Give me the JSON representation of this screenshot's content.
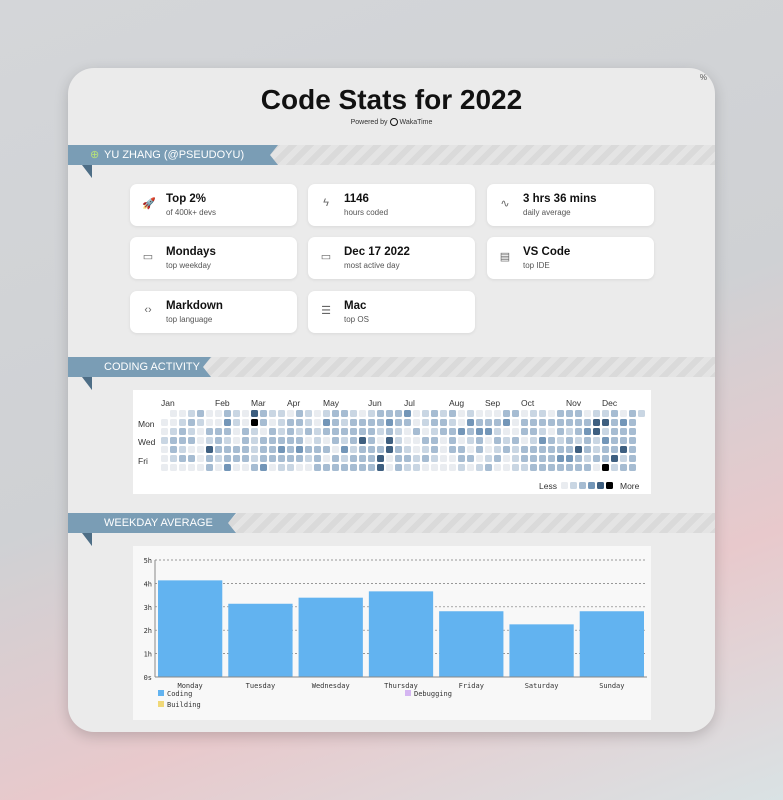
{
  "title": "Code Stats for 2022",
  "powered_by": "Powered by",
  "brand": "WakaTime",
  "corner_label": "%",
  "user_section": {
    "label": "YU ZHANG (@PSEUDOYU)"
  },
  "stats": [
    {
      "icon": "rocket-icon",
      "glyph": "🚀",
      "value": "Top 2%",
      "label": "of 400k+ devs"
    },
    {
      "icon": "lightning-icon",
      "glyph": "ϟ",
      "value": "1146",
      "label": "hours coded"
    },
    {
      "icon": "activity-icon",
      "glyph": "∿",
      "value": "3 hrs 36 mins",
      "label": "daily average"
    },
    {
      "icon": "calendar-icon",
      "glyph": "▭",
      "value": "Mondays",
      "label": "top weekday"
    },
    {
      "icon": "calendar-icon",
      "glyph": "▭",
      "value": "Dec 17 2022",
      "label": "most active day"
    },
    {
      "icon": "file-icon",
      "glyph": "▤",
      "value": "VS Code",
      "label": "top IDE"
    },
    {
      "icon": "code-file-icon",
      "glyph": "‹›",
      "value": "Markdown",
      "label": "top language"
    },
    {
      "icon": "server-icon",
      "glyph": "☰",
      "value": "Mac",
      "label": "top OS"
    }
  ],
  "activity": {
    "label": "CODING ACTIVITY",
    "months": [
      {
        "name": "Jan",
        "col": 0
      },
      {
        "name": "Feb",
        "col": 6
      },
      {
        "name": "Mar",
        "col": 10
      },
      {
        "name": "Apr",
        "col": 14
      },
      {
        "name": "May",
        "col": 18
      },
      {
        "name": "Jun",
        "col": 23
      },
      {
        "name": "Jul",
        "col": 27
      },
      {
        "name": "Aug",
        "col": 32
      },
      {
        "name": "Sep",
        "col": 36
      },
      {
        "name": "Oct",
        "col": 40
      },
      {
        "name": "Nov",
        "col": 45
      },
      {
        "name": "Dec",
        "col": 49
      }
    ],
    "day_labels": [
      "Mon",
      "Wed",
      "Fri"
    ],
    "less": "Less",
    "more": "More",
    "level_colors": [
      "#e9ecf0",
      "#c9d6e3",
      "#a6bcd2",
      "#7396b8",
      "#3e5f80",
      "#000000"
    ],
    "rows": [
      "-00120021042110210122101222301212010002201102220112021",
      "00121003105201221032122223220122103222302222222244232",
      "01210222021021212122222212102012232331002210212341222",
      "12220121021222220102124204100220201202120132121213222",
      "02100422221223232220312224210120220201212222224212242",
      "01220212221222221202122240221210022012012222332122412",
      "00000203002301100222222240211000010120011222222205122"
    ]
  },
  "weekday": {
    "label": "WEEKDAY AVERAGE",
    "chart_data": {
      "type": "bar",
      "categories": [
        "Monday",
        "Tuesday",
        "Wednesday",
        "Thursday",
        "Friday",
        "Saturday",
        "Sunday"
      ],
      "series": [
        {
          "name": "Coding",
          "color": "#62b3f0",
          "values": [
            4.13,
            3.13,
            3.39,
            3.66,
            2.81,
            2.25,
            2.81
          ]
        }
      ],
      "legend": [
        {
          "name": "Coding",
          "color": "#62b3f0"
        },
        {
          "name": "Debugging",
          "color": "#d5b6f2"
        },
        {
          "name": "Building",
          "color": "#f0d878"
        }
      ],
      "yticks": [
        "0s",
        "1h",
        "2h",
        "3h",
        "4h",
        "5h"
      ],
      "ylim": [
        0,
        5
      ],
      "grid": true,
      "legend_position": "bottom"
    }
  }
}
